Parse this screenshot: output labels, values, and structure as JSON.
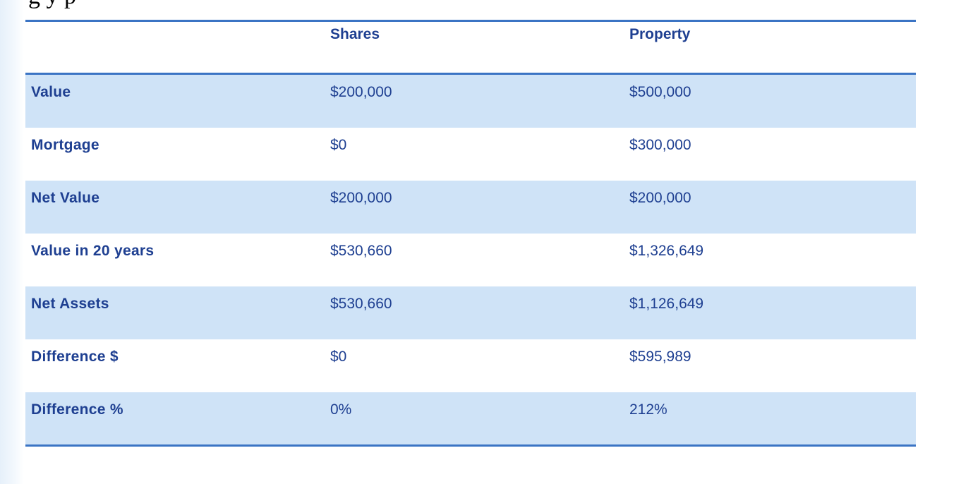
{
  "heading_fragment": "g            y   p",
  "table": {
    "columns": [
      "Shares",
      "Property"
    ],
    "rows": [
      {
        "label": "Value",
        "shares": "$200,000",
        "property": "$500,000",
        "shaded": true
      },
      {
        "label": "Mortgage",
        "shares": "$0",
        "property": "$300,000",
        "shaded": false
      },
      {
        "label": "Net Value",
        "shares": "$200,000",
        "property": "$200,000",
        "shaded": true
      },
      {
        "label": "Value in 20 years",
        "shares": "$530,660",
        "property": "$1,326,649",
        "shaded": false
      },
      {
        "label": "Net Assets",
        "shares": "$530,660",
        "property": "$1,126,649",
        "shaded": true
      },
      {
        "label": "Difference $",
        "shares": "$0",
        "property": "$595,989",
        "shaded": false
      },
      {
        "label": "Difference %",
        "shares": "0%",
        "property": "212%",
        "shaded": true
      }
    ]
  },
  "colors": {
    "text": "#1e3f91",
    "rule": "#3b74c4",
    "shade": "#cfe3f7"
  }
}
